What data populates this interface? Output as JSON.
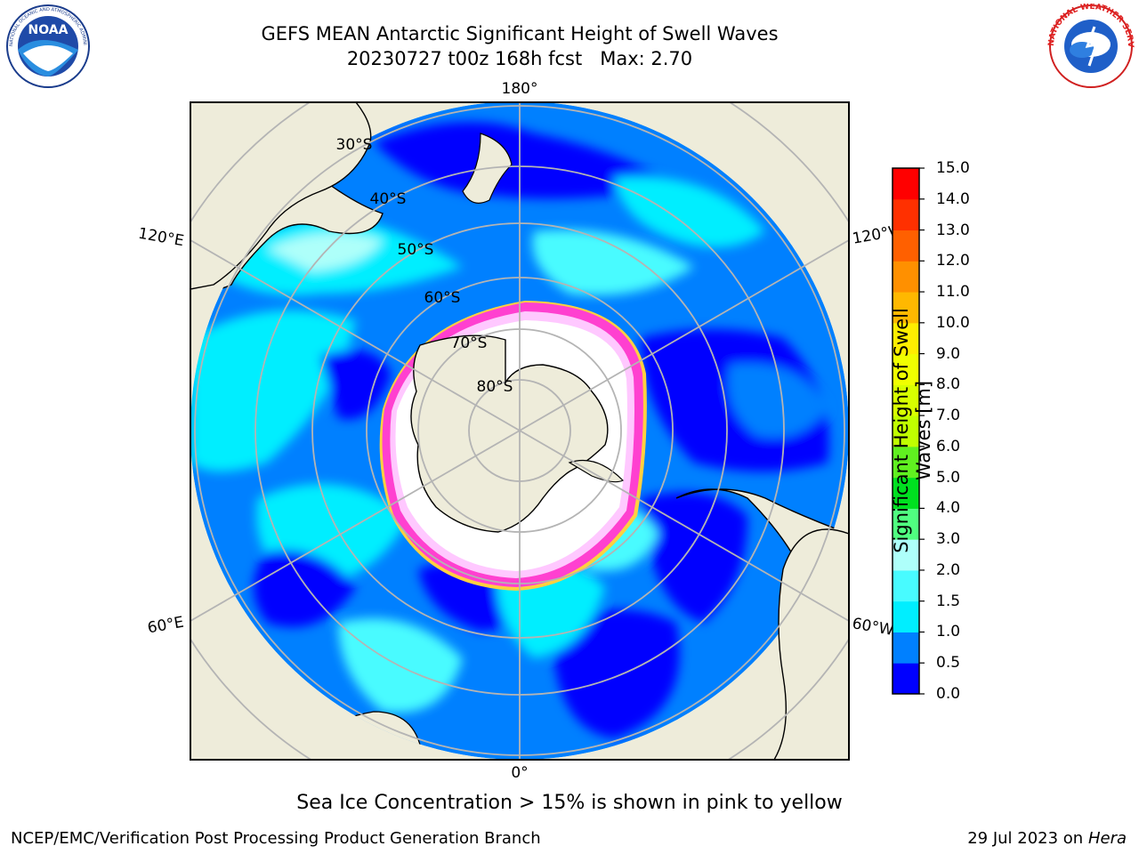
{
  "header": {
    "title_line1": "GEFS MEAN Antarctic Significant Height of Swell Waves",
    "title_line2": "20230727 t00z 168h fcst   Max: 2.70"
  },
  "logos": {
    "left": "noaa-logo",
    "right": "national-weather-service-logo",
    "left_text": "NATIONAL OCEANIC AND ATMOSPHERIC ADMINISTRATION · U.S. DEPARTMENT OF COMMERCE",
    "left_abbrev": "NOAA",
    "right_text": "NATIONAL WEATHER SERVICE"
  },
  "map": {
    "projection": "south-polar-stereographic",
    "longitude_labels": {
      "top": "180°",
      "bottom": "0°",
      "upper_left": "120°E",
      "upper_right": "120°W",
      "lower_left": "60°E",
      "lower_right": "60°W"
    },
    "latitude_labels": [
      "30°S",
      "40°S",
      "50°S",
      "60°S",
      "70°S",
      "80°S"
    ],
    "colors": {
      "land": "#eeecda",
      "grid": "#b4b4b4",
      "sea_ice": "#ffffff",
      "ice_edge": [
        "#ff40d0",
        "#ffc8ff",
        "#ffd040"
      ]
    }
  },
  "colorbar": {
    "label_line1": "Significant Height of Swell",
    "label_line2": "Waves [m]",
    "ticks": [
      "0.0",
      "0.5",
      "1.0",
      "1.5",
      "2.0",
      "3.0",
      "4.0",
      "5.0",
      "6.0",
      "7.0",
      "8.0",
      "9.0",
      "10.0",
      "11.0",
      "12.0",
      "13.0",
      "14.0",
      "15.0"
    ],
    "bins": [
      {
        "from": 0.0,
        "to": 0.5,
        "color": "#0000ff"
      },
      {
        "from": 0.5,
        "to": 1.0,
        "color": "#0080ff"
      },
      {
        "from": 1.0,
        "to": 1.5,
        "color": "#00eeff"
      },
      {
        "from": 1.5,
        "to": 2.0,
        "color": "#48fbff"
      },
      {
        "from": 2.0,
        "to": 3.0,
        "color": "#aefffa"
      },
      {
        "from": 3.0,
        "to": 4.0,
        "color": "#50ff80"
      },
      {
        "from": 4.0,
        "to": 5.0,
        "color": "#00e020"
      },
      {
        "from": 5.0,
        "to": 6.0,
        "color": "#60f020"
      },
      {
        "from": 6.0,
        "to": 7.0,
        "color": "#c0ff00"
      },
      {
        "from": 7.0,
        "to": 8.0,
        "color": "#d8ff00"
      },
      {
        "from": 8.0,
        "to": 9.0,
        "color": "#f0ff00"
      },
      {
        "from": 9.0,
        "to": 10.0,
        "color": "#ffee00"
      },
      {
        "from": 10.0,
        "to": 11.0,
        "color": "#ffb800"
      },
      {
        "from": 11.0,
        "to": 12.0,
        "color": "#ff9000"
      },
      {
        "from": 12.0,
        "to": 13.0,
        "color": "#ff6000"
      },
      {
        "from": 13.0,
        "to": 14.0,
        "color": "#ff3000"
      },
      {
        "from": 14.0,
        "to": 15.0,
        "color": "#ff0000"
      }
    ]
  },
  "note": "Sea Ice Concentration > 15% is shown in pink to yellow",
  "footer": {
    "left": "NCEP/EMC/Verification Post Processing Product Generation Branch",
    "right_prefix": "29 Jul 2023 on ",
    "right_host": "Hera"
  }
}
